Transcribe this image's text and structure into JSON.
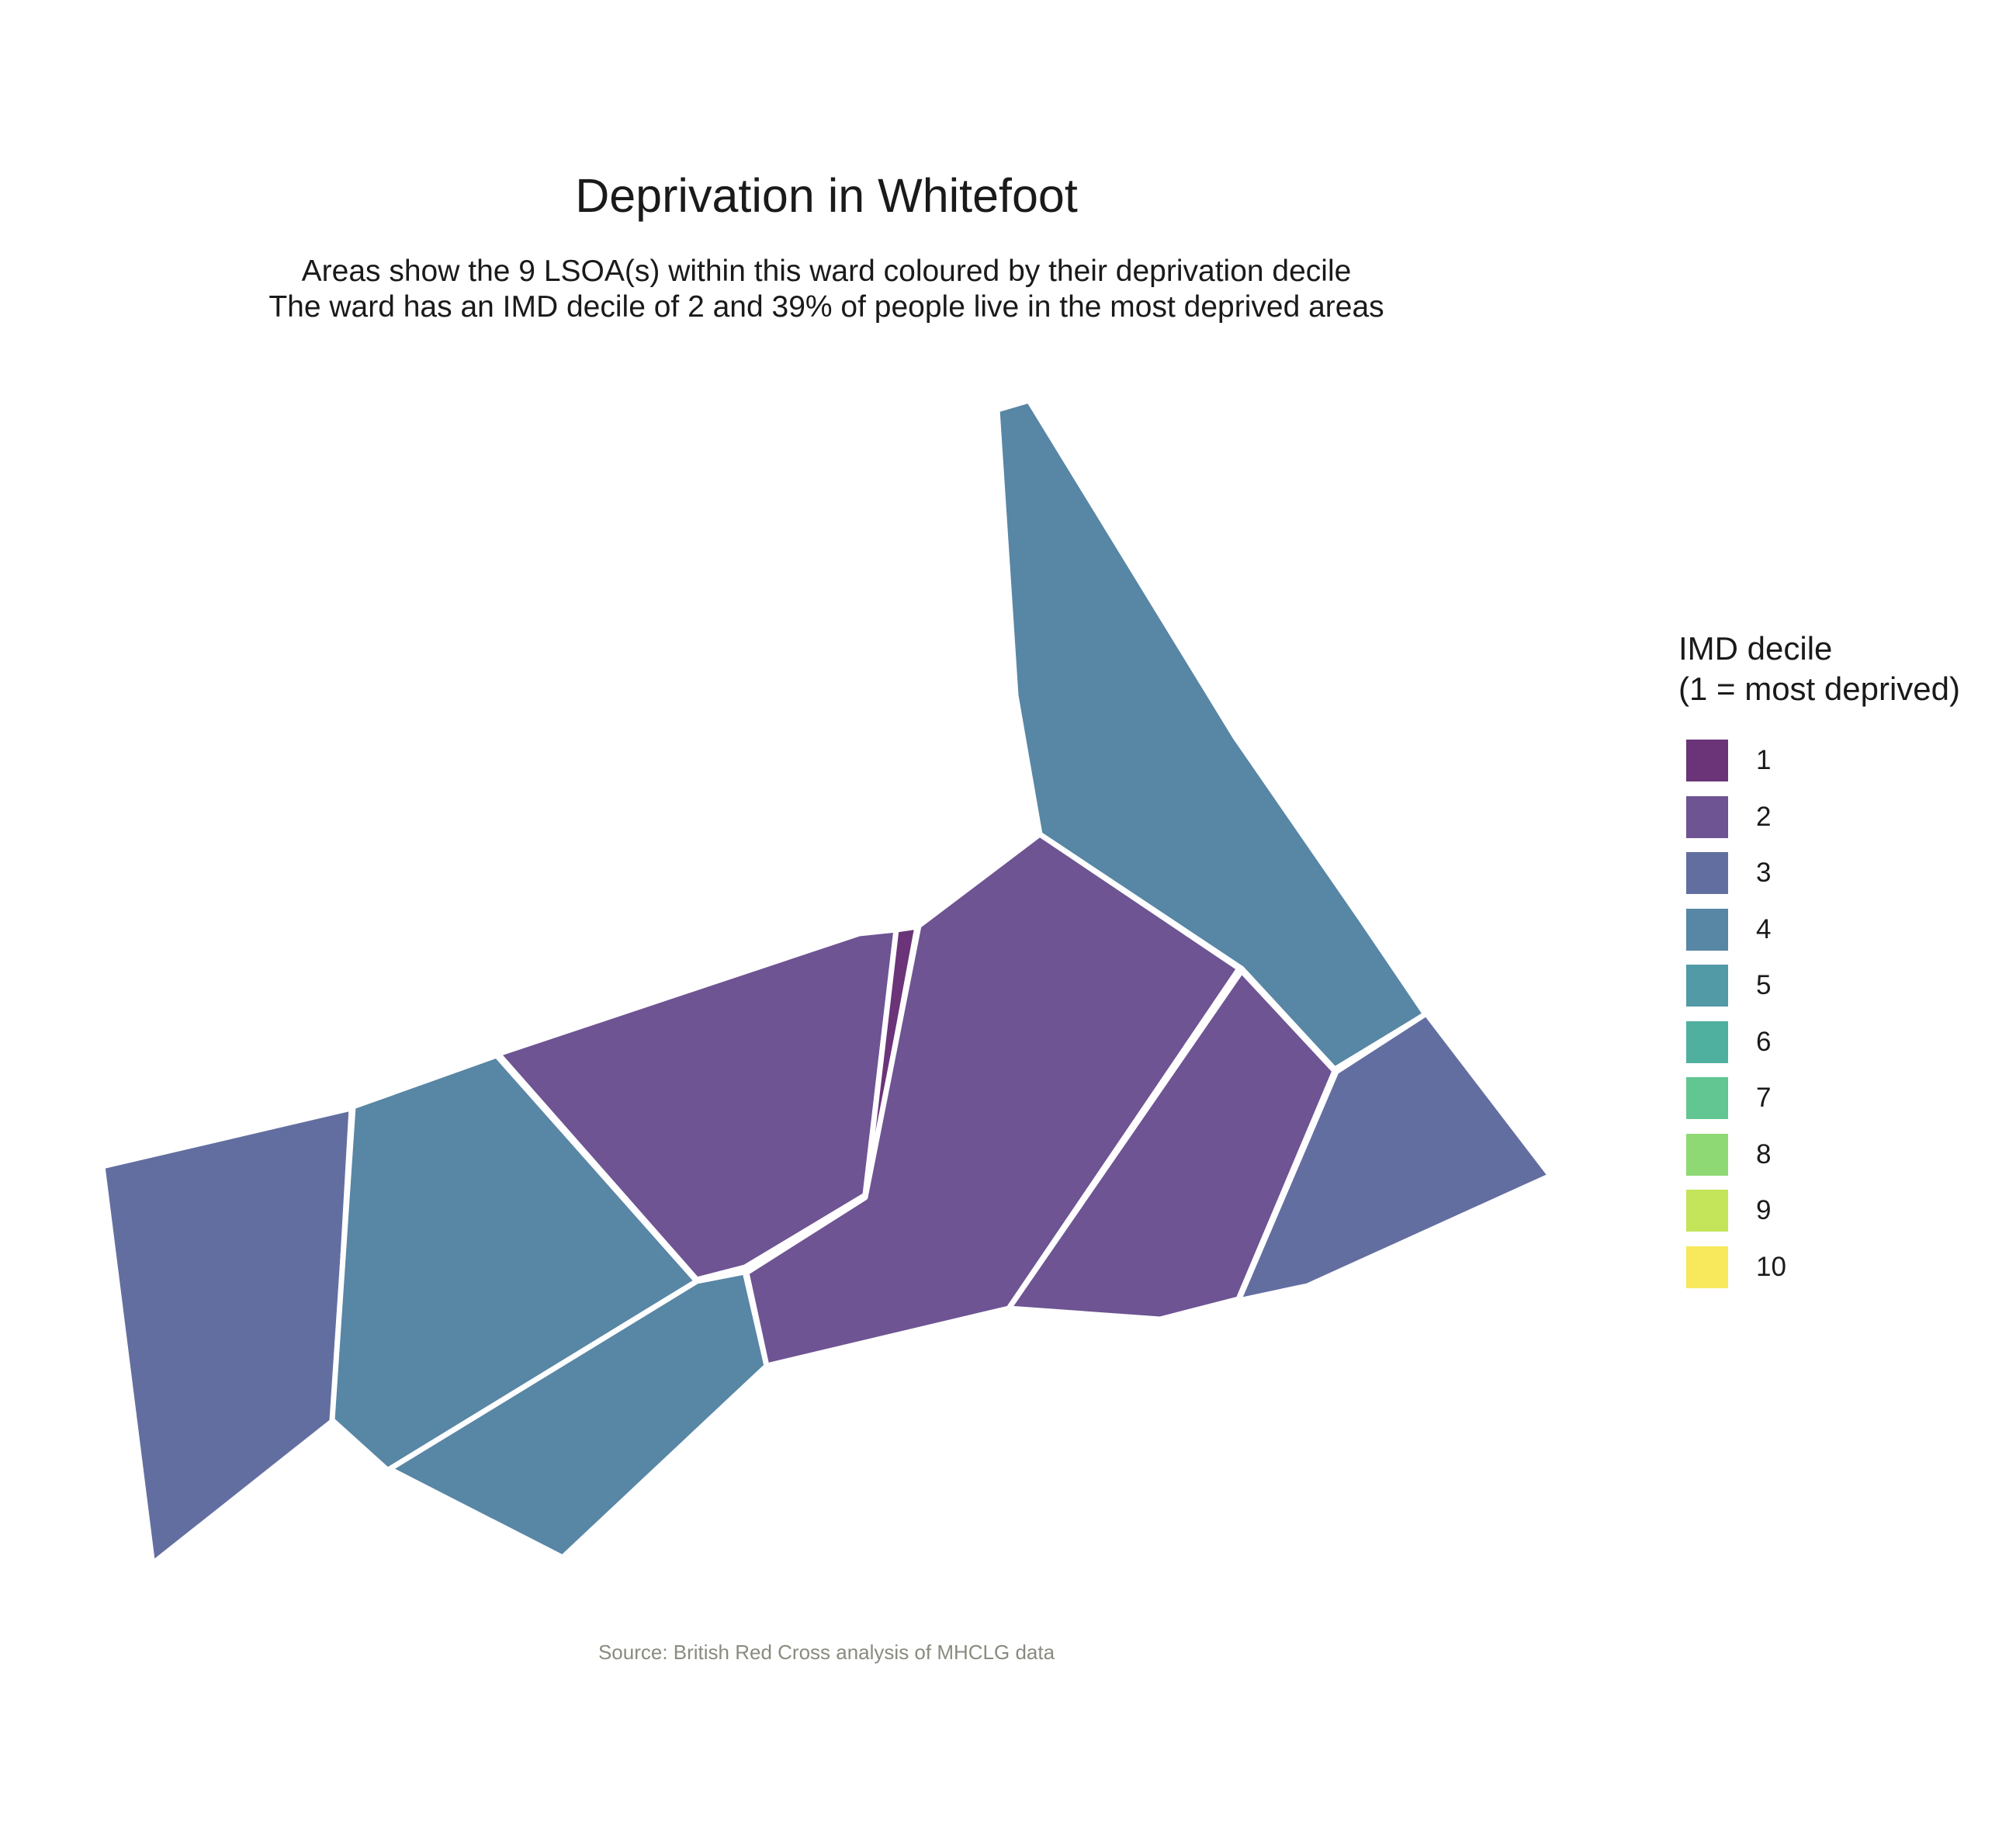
{
  "title": "Deprivation in Whitefoot",
  "subtitle_lines": [
    "Areas show the 9 LSOA(s) within this ward coloured by their deprivation decile",
    "The ward has an IMD decile of 2 and 39% of people live in the most deprived areas"
  ],
  "caption": "Source: British Red Cross analysis of MHCLG data",
  "legend": {
    "title_lines": [
      "IMD decile",
      "(1 = most deprived)"
    ],
    "items": [
      {
        "label": "1",
        "color": "#6b3479"
      },
      {
        "label": "2",
        "color": "#6e5493"
      },
      {
        "label": "3",
        "color": "#636ea0"
      },
      {
        "label": "4",
        "color": "#5886a5"
      },
      {
        "label": "5",
        "color": "#529aa5"
      },
      {
        "label": "6",
        "color": "#4fb09f"
      },
      {
        "label": "7",
        "color": "#61c691"
      },
      {
        "label": "8",
        "color": "#8fd974"
      },
      {
        "label": "9",
        "color": "#c4e45a"
      },
      {
        "label": "10",
        "color": "#f7e85c"
      }
    ]
  },
  "map_data": {
    "ward": "Whitefoot",
    "lsoa_count": 9,
    "ward_imd_decile": 2,
    "percent_most_deprived": 39,
    "areas": [
      {
        "id": "lsoa-a",
        "imd_decile": 3
      },
      {
        "id": "lsoa-b",
        "imd_decile": 4
      },
      {
        "id": "lsoa-c",
        "imd_decile": 2
      },
      {
        "id": "lsoa-d",
        "imd_decile": 4
      },
      {
        "id": "lsoa-e",
        "imd_decile": 1
      },
      {
        "id": "lsoa-f",
        "imd_decile": 2
      },
      {
        "id": "lsoa-g",
        "imd_decile": 4
      },
      {
        "id": "lsoa-h",
        "imd_decile": 2
      },
      {
        "id": "lsoa-i",
        "imd_decile": 3
      }
    ]
  }
}
